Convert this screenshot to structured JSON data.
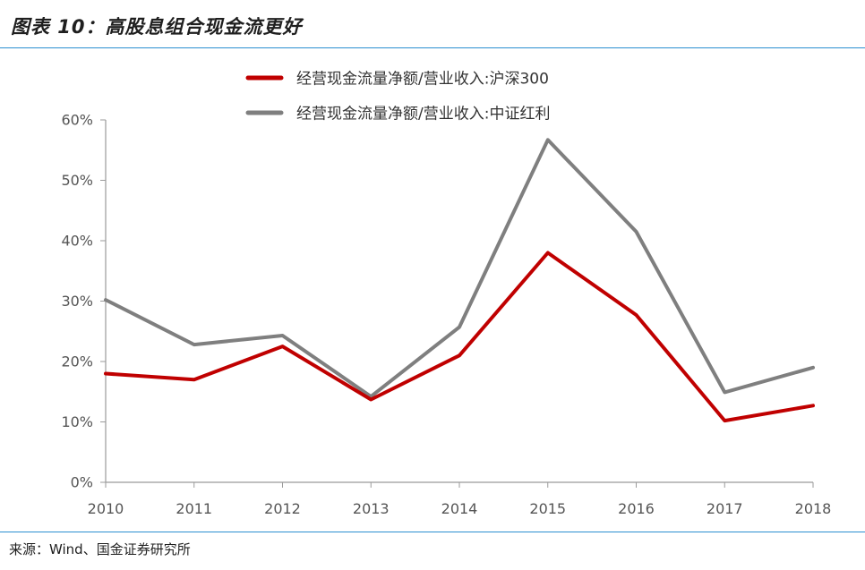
{
  "header": {
    "title": "图表 10：高股息组合现金流更好"
  },
  "footer": {
    "source": "来源：Wind、国金证券研究所"
  },
  "colors": {
    "accent_rule": "#2b8fd1",
    "series_red": "#c00000",
    "series_gray": "#7f7f7f"
  },
  "chart_data": {
    "type": "line",
    "title": "",
    "xlabel": "",
    "ylabel": "",
    "categories": [
      "2010",
      "2011",
      "2012",
      "2013",
      "2014",
      "2015",
      "2016",
      "2017",
      "2018"
    ],
    "yticks": [
      "0%",
      "10%",
      "20%",
      "30%",
      "40%",
      "50%",
      "60%"
    ],
    "ylim": [
      0,
      60
    ],
    "grid": false,
    "legend_position": "top-right",
    "series": [
      {
        "name": "经营现金流量净额/营业收入:沪深300",
        "color": "#c00000",
        "values": [
          18,
          17,
          22.5,
          13.7,
          21,
          38,
          27.7,
          10.2,
          12.7
        ]
      },
      {
        "name": "经营现金流量净额/营业收入:中证红利",
        "color": "#7f7f7f",
        "values": [
          30.2,
          22.8,
          24.3,
          14.2,
          25.7,
          56.7,
          41.5,
          14.9,
          19
        ]
      }
    ]
  }
}
